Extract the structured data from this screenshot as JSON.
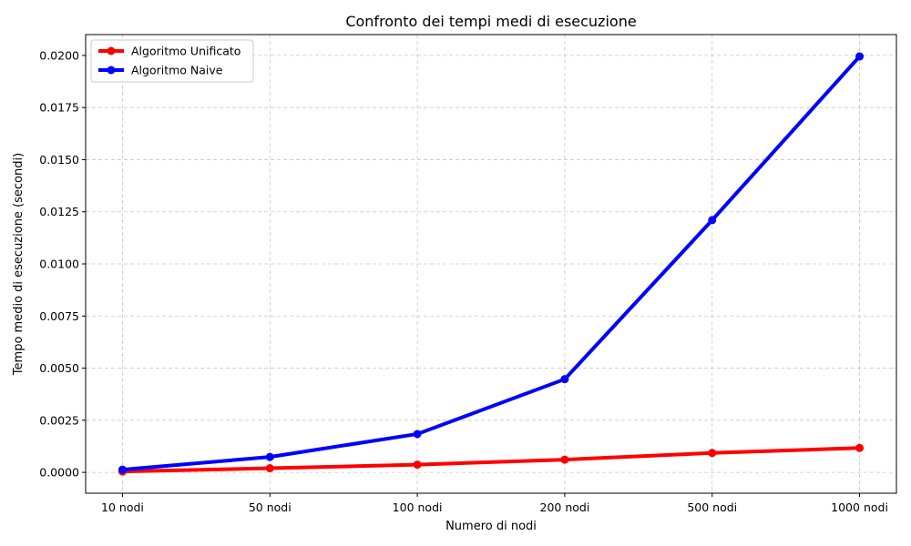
{
  "chart_data": {
    "type": "line",
    "title": "Confronto dei tempi medi di esecuzione",
    "xlabel": "Numero di nodi",
    "ylabel": "Tempo medio di esecuzione (secondi)",
    "categories": [
      "10 nodi",
      "50 nodi",
      "100 nodi",
      "200 nodi",
      "500 nodi",
      "1000 nodi"
    ],
    "yticks": [
      "0.0000",
      "0.0025",
      "0.0050",
      "0.0075",
      "0.0100",
      "0.0125",
      "0.0150",
      "0.0175",
      "0.0200"
    ],
    "ylim": [
      -0.001,
      0.021
    ],
    "grid": true,
    "legend_position": "top-left",
    "series": [
      {
        "name": "Algoritmo Unificato",
        "color": "#ff0000",
        "values": [
          4e-05,
          0.0002,
          0.00037,
          0.00061,
          0.00093,
          0.00117
        ]
      },
      {
        "name": "Algoritmo Naive",
        "color": "#0000ff",
        "values": [
          0.00013,
          0.00074,
          0.00184,
          0.00447,
          0.0121,
          0.01995
        ]
      }
    ]
  }
}
